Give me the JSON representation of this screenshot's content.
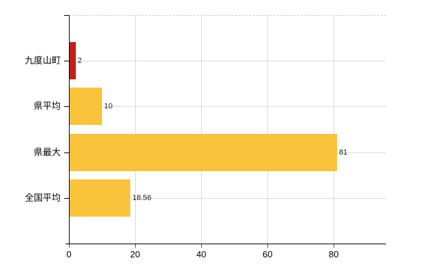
{
  "chart_data": {
    "type": "bar",
    "orientation": "horizontal",
    "title": "",
    "xlabel": "",
    "ylabel": "",
    "categories": [
      "九度山町",
      "県平均",
      "県最大",
      "全国平均"
    ],
    "values": [
      2,
      10,
      81,
      18.56
    ],
    "value_labels": [
      "2",
      "10",
      "81",
      "18.56"
    ],
    "bar_colors": [
      "#c32014",
      "#fac33c",
      "#fac33c",
      "#fac33c"
    ],
    "x_ticks": [
      0,
      20,
      40,
      60,
      80
    ],
    "x_tick_labels": [
      "0",
      "20",
      "40",
      "60",
      "80"
    ],
    "xlim": [
      0,
      95.8
    ],
    "grid": true,
    "legend": false,
    "background_color": "#ffffff",
    "gridline_color": "#d9d9d9",
    "axis_color": "#000000"
  }
}
